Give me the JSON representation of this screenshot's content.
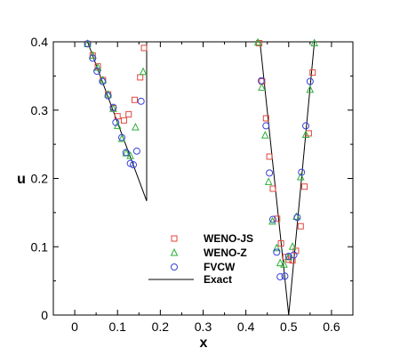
{
  "chart_data": {
    "type": "scatter",
    "xlabel": "x",
    "ylabel": "u",
    "xlim": [
      -0.05,
      0.65
    ],
    "ylim": [
      0,
      0.4
    ],
    "x_ticks": [
      "0",
      "0.1",
      "0.2",
      "0.3",
      "0.4",
      "0.5",
      "0.6"
    ],
    "y_ticks": [
      "0",
      "0.1",
      "0.2",
      "0.3",
      "0.4"
    ],
    "x_tick_values": [
      0,
      0.1,
      0.2,
      0.3,
      0.4,
      0.5,
      0.6
    ],
    "y_tick_values": [
      0,
      0.1,
      0.2,
      0.3,
      0.4
    ],
    "grid": false,
    "legend_position": "bottom-center",
    "series": [
      {
        "name": "WENO-JS",
        "marker": "square",
        "color": "#e0483c",
        "points": [
          [
            0.03,
            0.397
          ],
          [
            0.042,
            0.38
          ],
          [
            0.054,
            0.364
          ],
          [
            0.066,
            0.344
          ],
          [
            0.078,
            0.323
          ],
          [
            0.09,
            0.303
          ],
          [
            0.1,
            0.291
          ],
          [
            0.115,
            0.285
          ],
          [
            0.126,
            0.294
          ],
          [
            0.14,
            0.315
          ],
          [
            0.153,
            0.348
          ],
          [
            0.162,
            0.391
          ],
          [
            0.431,
            0.398
          ],
          [
            0.438,
            0.342
          ],
          [
            0.447,
            0.288
          ],
          [
            0.455,
            0.232
          ],
          [
            0.463,
            0.185
          ],
          [
            0.473,
            0.141
          ],
          [
            0.482,
            0.105
          ],
          [
            0.493,
            0.085
          ],
          [
            0.5,
            0.081
          ],
          [
            0.509,
            0.08
          ],
          [
            0.517,
            0.094
          ],
          [
            0.528,
            0.13
          ],
          [
            0.537,
            0.188
          ],
          [
            0.547,
            0.266
          ],
          [
            0.556,
            0.355
          ]
        ]
      },
      {
        "name": "WENO-Z",
        "marker": "triangle",
        "color": "#2fae3a",
        "points": [
          [
            0.03,
            0.397
          ],
          [
            0.042,
            0.38
          ],
          [
            0.054,
            0.362
          ],
          [
            0.066,
            0.344
          ],
          [
            0.078,
            0.323
          ],
          [
            0.09,
            0.302
          ],
          [
            0.1,
            0.277
          ],
          [
            0.11,
            0.258
          ],
          [
            0.12,
            0.237
          ],
          [
            0.13,
            0.233
          ],
          [
            0.142,
            0.275
          ],
          [
            0.16,
            0.356
          ],
          [
            0.428,
            0.399
          ],
          [
            0.437,
            0.333
          ],
          [
            0.445,
            0.263
          ],
          [
            0.453,
            0.195
          ],
          [
            0.462,
            0.137
          ],
          [
            0.472,
            0.098
          ],
          [
            0.48,
            0.076
          ],
          [
            0.489,
            0.074
          ],
          [
            0.5,
            0.085
          ],
          [
            0.509,
            0.1
          ],
          [
            0.518,
            0.144
          ],
          [
            0.528,
            0.202
          ],
          [
            0.54,
            0.264
          ],
          [
            0.55,
            0.33
          ],
          [
            0.56,
            0.398
          ]
        ]
      },
      {
        "name": "FVCW",
        "marker": "circle",
        "color": "#3742d8",
        "points": [
          [
            0.03,
            0.397
          ],
          [
            0.042,
            0.376
          ],
          [
            0.052,
            0.357
          ],
          [
            0.065,
            0.342
          ],
          [
            0.078,
            0.321
          ],
          [
            0.09,
            0.304
          ],
          [
            0.096,
            0.282
          ],
          [
            0.11,
            0.26
          ],
          [
            0.12,
            0.238
          ],
          [
            0.13,
            0.222
          ],
          [
            0.137,
            0.22
          ],
          [
            0.145,
            0.24
          ],
          [
            0.155,
            0.313
          ],
          [
            0.436,
            0.343
          ],
          [
            0.447,
            0.277
          ],
          [
            0.455,
            0.208
          ],
          [
            0.463,
            0.14
          ],
          [
            0.472,
            0.092
          ],
          [
            0.48,
            0.056
          ],
          [
            0.491,
            0.057
          ],
          [
            0.5,
            0.086
          ],
          [
            0.512,
            0.088
          ],
          [
            0.52,
            0.143
          ],
          [
            0.53,
            0.209
          ],
          [
            0.54,
            0.277
          ],
          [
            0.55,
            0.342
          ]
        ]
      },
      {
        "name": "Exact",
        "marker": "line",
        "color": "#000000",
        "segments": [
          [
            [
              0.03,
              0.4
            ],
            [
              0.168,
              0.167
            ],
            [
              0.168,
              0.4
            ]
          ],
          [
            [
              0.433,
              0.4
            ],
            [
              0.5,
              0.0
            ],
            [
              0.56,
              0.4
            ]
          ]
        ]
      }
    ]
  }
}
